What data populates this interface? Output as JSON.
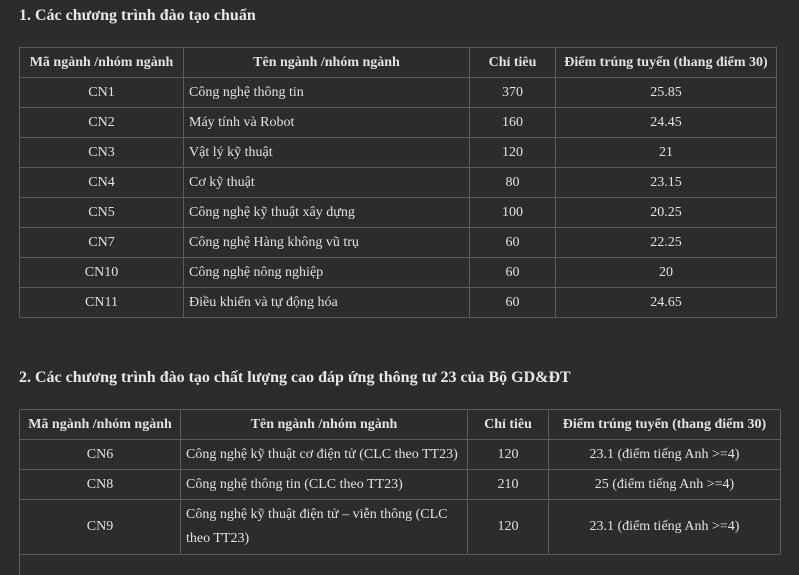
{
  "section1": {
    "title": "1. Các chương trình đào tạo chuẩn",
    "headers": [
      "Mã ngành /nhóm ngành",
      "Tên ngành /nhóm ngành",
      "Chỉ tiêu",
      "Điểm trúng tuyển (thang điểm 30)"
    ],
    "rows": [
      [
        "CN1",
        "Công nghệ thông tin",
        "370",
        "25.85"
      ],
      [
        "CN2",
        "Máy tính và Robot",
        "160",
        "24.45"
      ],
      [
        "CN3",
        "Vật lý kỹ thuật",
        "120",
        "21"
      ],
      [
        "CN4",
        "Cơ kỹ thuật",
        "80",
        "23.15"
      ],
      [
        "CN5",
        "Công nghệ kỹ thuật xây dựng",
        "100",
        "20.25"
      ],
      [
        "CN7",
        "Công nghệ Hàng không vũ trụ",
        "60",
        "22.25"
      ],
      [
        "CN10",
        "Công nghệ nông nghiệp",
        "60",
        "20"
      ],
      [
        "CN11",
        "Điều khiển và tự động hóa",
        "60",
        "24.65"
      ]
    ]
  },
  "section2": {
    "title": "2. Các chương trình đào tạo chất lượng cao đáp ứng thông tư 23 của Bộ GD&ĐT",
    "headers": [
      "Mã ngành /nhóm ngành",
      "Tên ngành /nhóm ngành",
      "Chỉ tiêu",
      "Điểm trúng tuyển (thang điểm 30)"
    ],
    "rows": [
      [
        "CN6",
        "Công nghệ kỹ thuật cơ điện tử (CLC theo TT23)",
        "120",
        "23.1 (điểm tiếng Anh >=4)"
      ],
      [
        "CN8",
        "Công nghệ thông tin (CLC theo TT23)",
        "210",
        "25 (điểm tiếng Anh >=4)"
      ],
      [
        "CN9",
        "Công nghệ kỹ thuật điện tử – viễn thông (CLC theo TT23)",
        "120",
        "23.1 (điểm tiếng Anh >=4)"
      ]
    ]
  }
}
